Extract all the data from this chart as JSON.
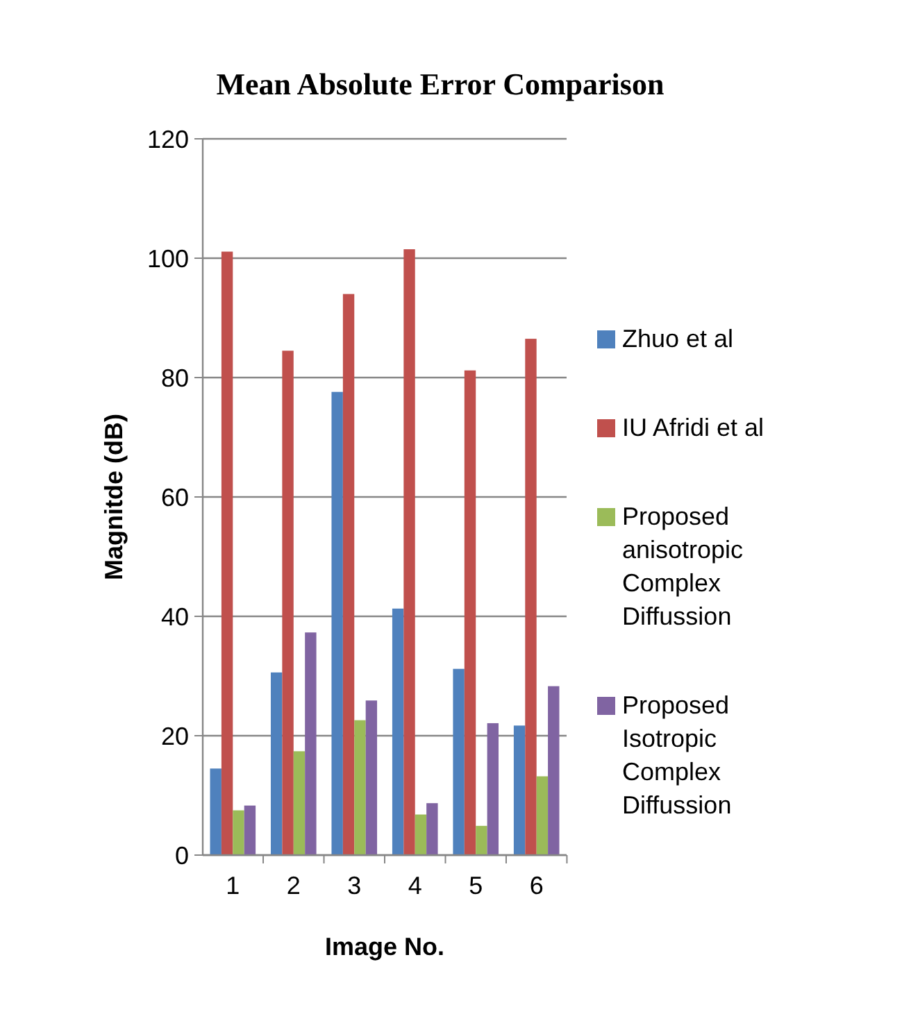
{
  "chart_data": {
    "type": "bar",
    "title": "Mean Absolute Error Comparison",
    "xlabel": "Image No.",
    "ylabel": "Magnitde (dB)",
    "categories": [
      "1",
      "2",
      "3",
      "4",
      "5",
      "6"
    ],
    "series": [
      {
        "name": "Zhuo et al",
        "color": "#4f81bd",
        "values": [
          14.5,
          30.6,
          77.6,
          41.3,
          31.2,
          21.7
        ]
      },
      {
        "name": "IU Afridi et al",
        "color": "#c0504d",
        "values": [
          101.1,
          84.5,
          94.0,
          101.5,
          81.2,
          86.5
        ]
      },
      {
        "name": "Proposed anisotropic Complex Diffussion",
        "color": "#9bbb59",
        "values": [
          7.5,
          17.4,
          22.6,
          6.8,
          4.9,
          13.2
        ]
      },
      {
        "name": "Proposed Isotropic Complex Diffussion",
        "color": "#8064a2",
        "values": [
          8.3,
          37.3,
          25.9,
          8.7,
          22.1,
          28.3
        ]
      }
    ],
    "ylim": [
      0,
      120
    ],
    "yticks": [
      0,
      20,
      40,
      60,
      80,
      100,
      120
    ],
    "grid": "y",
    "legend": "right"
  }
}
